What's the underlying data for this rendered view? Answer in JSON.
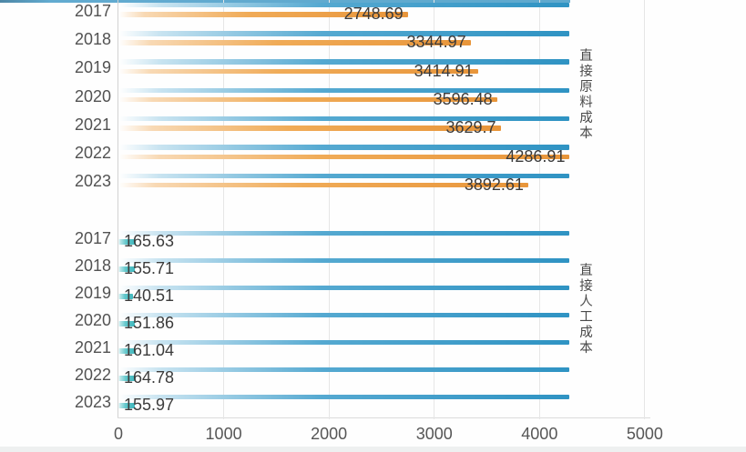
{
  "chart_data": {
    "type": "bar",
    "orientation": "horizontal",
    "title": "",
    "xlabel": "",
    "ylabel": "",
    "x_axis": {
      "min": 0,
      "max": 5000,
      "ticks": [
        0,
        1000,
        2000,
        3000,
        4000,
        5000
      ],
      "tick_labels": [
        "0",
        "1000",
        "2000",
        "3000",
        "4000",
        "5000"
      ],
      "grid": true
    },
    "track_value": 4286.91,
    "groups": [
      {
        "label": "直接原料成本",
        "categories": [
          "2017",
          "2018",
          "2019",
          "2020",
          "2021",
          "2022",
          "2023"
        ],
        "values": [
          2748.69,
          3344.97,
          3414.91,
          3596.48,
          3629.7,
          4286.91,
          3892.61
        ],
        "bar_color": "orange"
      },
      {
        "label": "直接人工成本",
        "categories": [
          "2017",
          "2018",
          "2019",
          "2020",
          "2021",
          "2022",
          "2023"
        ],
        "values": [
          165.63,
          155.71,
          140.51,
          151.86,
          161.04,
          164.78,
          155.97
        ],
        "bar_color": "teal"
      }
    ],
    "colors": {
      "track_blue_end": "#2f93c3",
      "track_blue_mid": "#55a9d1",
      "track_blue_light": "#c9e4f1",
      "orange_end": "#e8953a",
      "orange_mid": "#f0ab57",
      "orange_light": "#f8d9b4",
      "teal_end": "#41b7bd",
      "teal_mid": "#5fc6ca",
      "grid": "#e6e6e6",
      "axis": "#d2d2d2",
      "year_text": "#525252",
      "value_text": "#3b3b3b",
      "group_text": "#4a4a4a"
    }
  }
}
